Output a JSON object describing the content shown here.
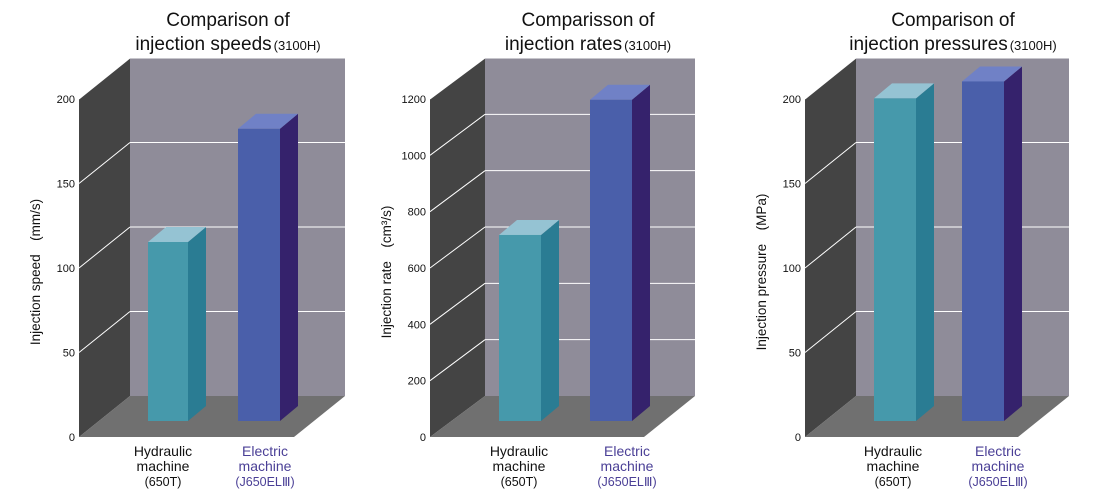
{
  "colors": {
    "wall_back": "#8f8c99",
    "wall_side": "#444444",
    "floor": "#707070",
    "grid": "#ffffff",
    "hydraulic_front": "#4699ab",
    "hydraulic_side": "#2a7c93",
    "hydraulic_top": "#95c3d3",
    "electric_front": "#4a5faa",
    "electric_side": "#35226c",
    "electric_top": "#7081c6",
    "hydraulic_label": "#111111",
    "electric_label": "#4a3f96"
  },
  "chart_data": [
    {
      "type": "bar",
      "title_lines": [
        "Comparison of",
        "injection speeds"
      ],
      "title_suffix": "(3100H)",
      "ylabel": "Injection speed　(mm/s)",
      "ylim": [
        0,
        200
      ],
      "yticks": [
        0,
        50,
        100,
        150,
        200
      ],
      "categories": [
        {
          "lines": [
            "Hydraulic",
            "machine"
          ],
          "sub": "(650T)"
        },
        {
          "lines": [
            "Electric",
            "machine"
          ],
          "sub": "(J650ELⅢ)"
        }
      ],
      "values": [
        100,
        167
      ]
    },
    {
      "type": "bar",
      "title_lines": [
        "Comparisson of",
        "injection rates"
      ],
      "title_suffix": "(3100H)",
      "ylabel": "Injection rate　(cm³/s)",
      "ylim": [
        0,
        1200
      ],
      "yticks": [
        0,
        200,
        400,
        600,
        800,
        1000,
        1200
      ],
      "categories": [
        {
          "lines": [
            "Hydraulic",
            "machine"
          ],
          "sub": "(650T)"
        },
        {
          "lines": [
            "Electric",
            "machine"
          ],
          "sub": "(J650ELⅢ)"
        }
      ],
      "values": [
        625,
        1105
      ]
    },
    {
      "type": "bar",
      "title_lines": [
        "Comparison of",
        "injection pressures"
      ],
      "title_suffix": "(3100H)",
      "ylabel": "Injection pressure　(MPa)",
      "ylim": [
        0,
        200
      ],
      "yticks": [
        0,
        50,
        100,
        150,
        200
      ],
      "categories": [
        {
          "lines": [
            "Hydraulic",
            "machine"
          ],
          "sub": "(650T)"
        },
        {
          "lines": [
            "Electric",
            "machine"
          ],
          "sub": "(J650ELⅢ)"
        }
      ],
      "values": [
        185,
        195
      ]
    }
  ]
}
